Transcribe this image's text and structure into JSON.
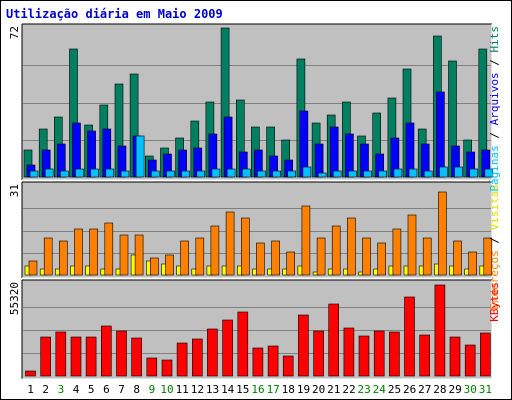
{
  "title": "Utilização diária em Maio 2009",
  "colors": {
    "title": "#0000cc",
    "panel_bg": "#c0c0c0",
    "hits": "#008060",
    "files": "#0000ff",
    "pages": "#00c0ff",
    "visits": "#ffff00",
    "sites": "#ff8000",
    "kbytes": "#ff0000",
    "weekday_label": "#000000",
    "weekend_label": "#008000"
  },
  "right_labels": {
    "panel1": [
      {
        "text": "Hits",
        "color": "#008060"
      },
      {
        "text": " / ",
        "color": "#000000"
      },
      {
        "text": "Arquivos",
        "color": "#0000ff"
      },
      {
        "text": " / ",
        "color": "#000000"
      },
      {
        "text": "Páginas",
        "color": "#00c0ff"
      }
    ],
    "panel2": [
      {
        "text": "Visitas",
        "color": "#e0e000"
      },
      {
        "text": " / ",
        "color": "#000000"
      },
      {
        "text": "Endereços",
        "color": "#ff8000"
      }
    ],
    "panel3": [
      {
        "text": "KBytes",
        "color": "#ff0000"
      }
    ]
  },
  "chart_data": {
    "type": "bar",
    "title": "Utilização diária em Maio 2009",
    "categories": [
      "1",
      "2",
      "3",
      "4",
      "5",
      "6",
      "7",
      "8",
      "9",
      "10",
      "11",
      "12",
      "13",
      "14",
      "15",
      "16",
      "17",
      "18",
      "19",
      "20",
      "21",
      "22",
      "23",
      "24",
      "25",
      "26",
      "27",
      "28",
      "29",
      "30",
      "31"
    ],
    "weekend_days": [
      "3",
      "9",
      "10",
      "16",
      "17",
      "23",
      "24",
      "30",
      "31"
    ],
    "panels": [
      {
        "ymax_label": "72",
        "ylim": [
          0,
          72
        ],
        "series": [
          {
            "name": "Hits",
            "values": [
              13,
              23,
              29,
              62,
              25,
              35,
              45,
              50,
              10,
              14,
              19,
              27,
              36,
              72,
              37,
              24,
              24,
              18,
              57,
              26,
              30,
              36,
              20,
              31,
              38,
              52,
              23,
              68,
              56,
              18,
              62
            ]
          },
          {
            "name": "Arquivos",
            "values": [
              6,
              13,
              16,
              26,
              22,
              23,
              15,
              20,
              8,
              11,
              13,
              14,
              21,
              29,
              12,
              13,
              10,
              8,
              32,
              16,
              24,
              21,
              16,
              11,
              19,
              26,
              16,
              41,
              15,
              12,
              13
            ]
          },
          {
            "name": "Páginas",
            "values": [
              3,
              4,
              3,
              4,
              4,
              4,
              3,
              20,
              3,
              3,
              3,
              3,
              4,
              4,
              4,
              3,
              3,
              3,
              5,
              2,
              3,
              3,
              3,
              3,
              4,
              4,
              3,
              5,
              5,
              4,
              4
            ]
          }
        ]
      },
      {
        "ymax_label": "31",
        "ylim": [
          0,
          31
        ],
        "series": [
          {
            "name": "Visitas",
            "values": [
              3,
              2,
              2,
              3,
              3,
              2,
              2,
              7,
              5,
              4,
              3,
              2,
              3,
              3,
              3,
              2,
              2,
              2,
              3,
              1,
              2,
              2,
              1,
              2,
              3,
              3,
              3,
              4,
              3,
              2,
              3
            ]
          },
          {
            "name": "Endereços",
            "values": [
              5,
              13,
              12,
              16,
              16,
              18,
              14,
              14,
              6,
              7,
              12,
              13,
              17,
              22,
              20,
              11,
              12,
              8,
              24,
              13,
              17,
              20,
              13,
              11,
              16,
              21,
              13,
              29,
              12,
              8,
              13
            ]
          }
        ]
      },
      {
        "ymax_label": "55320",
        "ylim": [
          0,
          55320
        ],
        "series": [
          {
            "name": "KBytes",
            "values": [
              3200,
              23700,
              26400,
              23600,
              23400,
              29800,
              27300,
              23000,
              10800,
              9800,
              19700,
              22300,
              28100,
              33700,
              38700,
              17100,
              17800,
              11900,
              36800,
              27100,
              43500,
              29100,
              23900,
              26900,
              26700,
              47800,
              24800,
              54900,
              23700,
              18700,
              25900
            ]
          }
        ]
      }
    ]
  }
}
